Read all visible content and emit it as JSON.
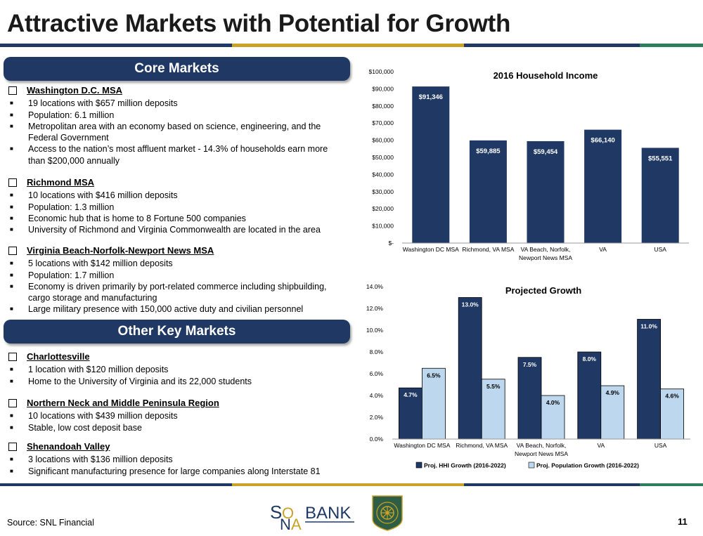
{
  "page": {
    "title": "Attractive Markets with Potential for Growth",
    "source": "Source: SNL Financial",
    "page_number": "11",
    "rule_colors": [
      "#1f3864",
      "#c9a227",
      "#1f3864",
      "#2e7d5b"
    ]
  },
  "core_markets": {
    "label": "Core Markets",
    "sections": [
      {
        "heading": "Washington D.C. MSA",
        "bullets": [
          "19 locations with $657 million deposits",
          "Population: 6.1 million",
          "Metropolitan area with an economy based on science, engineering, and the Federal Government",
          "Access to the nation’s most affluent market - 14.3% of households earn more than $200,000 annually"
        ]
      },
      {
        "heading": "Richmond MSA",
        "bullets": [
          "10 locations with $416 million deposits",
          "Population: 1.3 million",
          "Economic hub that is home to 8 Fortune 500 companies",
          "University of Richmond and Virginia Commonwealth are located in the area"
        ]
      },
      {
        "heading": "Virginia Beach-Norfolk-Newport News MSA",
        "bullets": [
          "5 locations with $142 million deposits",
          "Population: 1.7 million",
          "Economy is driven primarily by port-related commerce including shipbuilding, cargo storage and manufacturing",
          "Large military presence with 150,000 active duty and civilian personnel"
        ]
      }
    ]
  },
  "other_markets": {
    "label": "Other Key Markets",
    "sections": [
      {
        "heading": "Charlottesville",
        "bullets": [
          "1 location with $120 million deposits",
          "Home to the University of Virginia and its 22,000 students"
        ]
      },
      {
        "heading": "Northern Neck and Middle Peninsula Region",
        "bullets": [
          "10 locations with $439 million deposits",
          "Stable, low cost deposit base"
        ]
      },
      {
        "heading": "Shenandoah Valley",
        "bullets": [
          "3 locations with $136 million deposits",
          "Significant manufacturing presence for large companies along Interstate 81"
        ]
      }
    ]
  },
  "logos": {
    "sonabank": "SONABANK",
    "seal_ring_text": "EASTERN VIRGINIA BANKSHARES"
  },
  "chart_data": [
    {
      "type": "bar",
      "title": "2016 Household Income",
      "categories": [
        "Washington DC MSA",
        "Richmond, VA MSA",
        "VA Beach, Norfolk, Newport News MSA",
        "VA",
        "USA"
      ],
      "values": [
        91346,
        59885,
        59454,
        66140,
        55551
      ],
      "data_labels": [
        "$91,346",
        "$59,885",
        "$59,454",
        "$66,140",
        "$55,551"
      ],
      "y_ticks": [
        "$-",
        "$10,000",
        "$20,000",
        "$30,000",
        "$40,000",
        "$50,000",
        "$60,000",
        "$70,000",
        "$80,000",
        "$90,000",
        "$100,000"
      ],
      "ylim": [
        0,
        100000
      ],
      "bar_color": "#1f3864",
      "grid": false
    },
    {
      "type": "bar",
      "title": "Projected Growth",
      "categories": [
        "Washington DC MSA",
        "Richmond, VA MSA",
        "VA Beach, Norfolk, Newport News MSA",
        "VA",
        "USA"
      ],
      "series": [
        {
          "name": "Proj. HHI Growth (2016-2022)",
          "values": [
            4.7,
            13.0,
            7.5,
            8.0,
            11.0
          ],
          "labels": [
            "4.7%",
            "13.0%",
            "7.5%",
            "8.0%",
            "11.0%"
          ],
          "color": "#1f3864"
        },
        {
          "name": "Proj. Population Growth (2016-2022)",
          "values": [
            6.5,
            5.5,
            4.0,
            4.9,
            4.6
          ],
          "labels": [
            "6.5%",
            "5.5%",
            "4.0%",
            "4.9%",
            "4.6%"
          ],
          "color": "#bdd7ee"
        }
      ],
      "y_ticks": [
        "0.0%",
        "2.0%",
        "4.0%",
        "6.0%",
        "8.0%",
        "10.0%",
        "12.0%",
        "14.0%"
      ],
      "ylim": [
        0,
        14
      ],
      "legend_position": "bottom",
      "grid": false
    }
  ]
}
